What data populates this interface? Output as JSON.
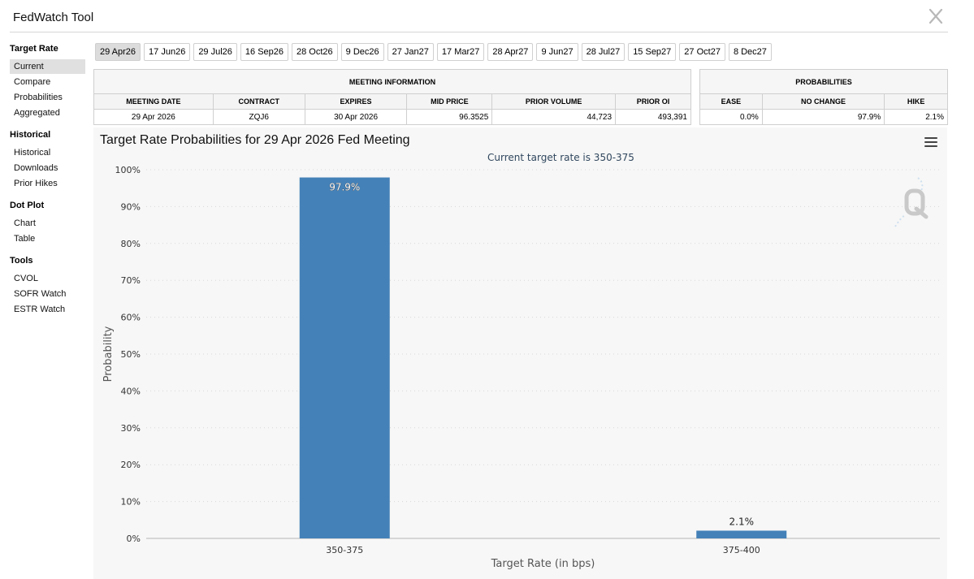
{
  "app": {
    "title": "FedWatch Tool"
  },
  "sidebar": {
    "groups": [
      {
        "heading": "Target Rate",
        "items": [
          {
            "label": "Current"
          },
          {
            "label": "Compare"
          },
          {
            "label": "Probabilities"
          },
          {
            "label": "Aggregated"
          }
        ]
      },
      {
        "heading": "Historical",
        "items": [
          {
            "label": "Historical"
          },
          {
            "label": "Downloads"
          },
          {
            "label": "Prior Hikes"
          }
        ]
      },
      {
        "heading": "Dot Plot",
        "items": [
          {
            "label": "Chart"
          },
          {
            "label": "Table"
          }
        ]
      },
      {
        "heading": "Tools",
        "items": [
          {
            "label": "CVOL"
          },
          {
            "label": "SOFR Watch"
          },
          {
            "label": "ESTR Watch"
          }
        ]
      }
    ]
  },
  "tabs": [
    {
      "label": "29 Apr26"
    },
    {
      "label": "17 Jun26"
    },
    {
      "label": "29 Jul26"
    },
    {
      "label": "16 Sep26"
    },
    {
      "label": "28 Oct26"
    },
    {
      "label": "9 Dec26"
    },
    {
      "label": "27 Jan27"
    },
    {
      "label": "17 Mar27"
    },
    {
      "label": "28 Apr27"
    },
    {
      "label": "9 Jun27"
    },
    {
      "label": "28 Jul27"
    },
    {
      "label": "15 Sep27"
    },
    {
      "label": "27 Oct27"
    },
    {
      "label": "8 Dec27"
    }
  ],
  "meeting_info": {
    "heading": "MEETING INFORMATION",
    "columns": [
      "MEETING DATE",
      "CONTRACT",
      "EXPIRES",
      "MID PRICE",
      "PRIOR VOLUME",
      "PRIOR OI"
    ],
    "values": [
      "29 Apr 2026",
      "ZQJ6",
      "30 Apr 2026",
      "96.3525",
      "44,723",
      "493,391"
    ]
  },
  "probabilities": {
    "heading": "PROBABILITIES",
    "columns": [
      "EASE",
      "NO CHANGE",
      "HIKE"
    ],
    "values": [
      "0.0%",
      "97.9%",
      "2.1%"
    ]
  },
  "chart": {
    "title": "Target Rate Probabilities for 29 Apr 2026 Fed Meeting",
    "subtitle": "Current target rate is 350-375"
  },
  "colors": {
    "bar": "#4481b8",
    "grid": "#d8d8d8",
    "axis_text": "#333333"
  },
  "chart_data": {
    "type": "bar",
    "categories": [
      "350-375",
      "375-400"
    ],
    "values": [
      97.9,
      2.1
    ],
    "data_labels": [
      "97.9%",
      "2.1%"
    ],
    "title": "Target Rate Probabilities for 29 Apr 2026 Fed Meeting",
    "subtitle": "Current target rate is 350-375",
    "xlabel": "Target Rate (in bps)",
    "ylabel": "Probability",
    "ylim": [
      0,
      100
    ],
    "yticks": [
      0,
      10,
      20,
      30,
      40,
      50,
      60,
      70,
      80,
      90,
      100
    ],
    "ytick_labels": [
      "0%",
      "10%",
      "20%",
      "30%",
      "40%",
      "50%",
      "60%",
      "70%",
      "80%",
      "90%",
      "100%"
    ],
    "grid": true
  }
}
